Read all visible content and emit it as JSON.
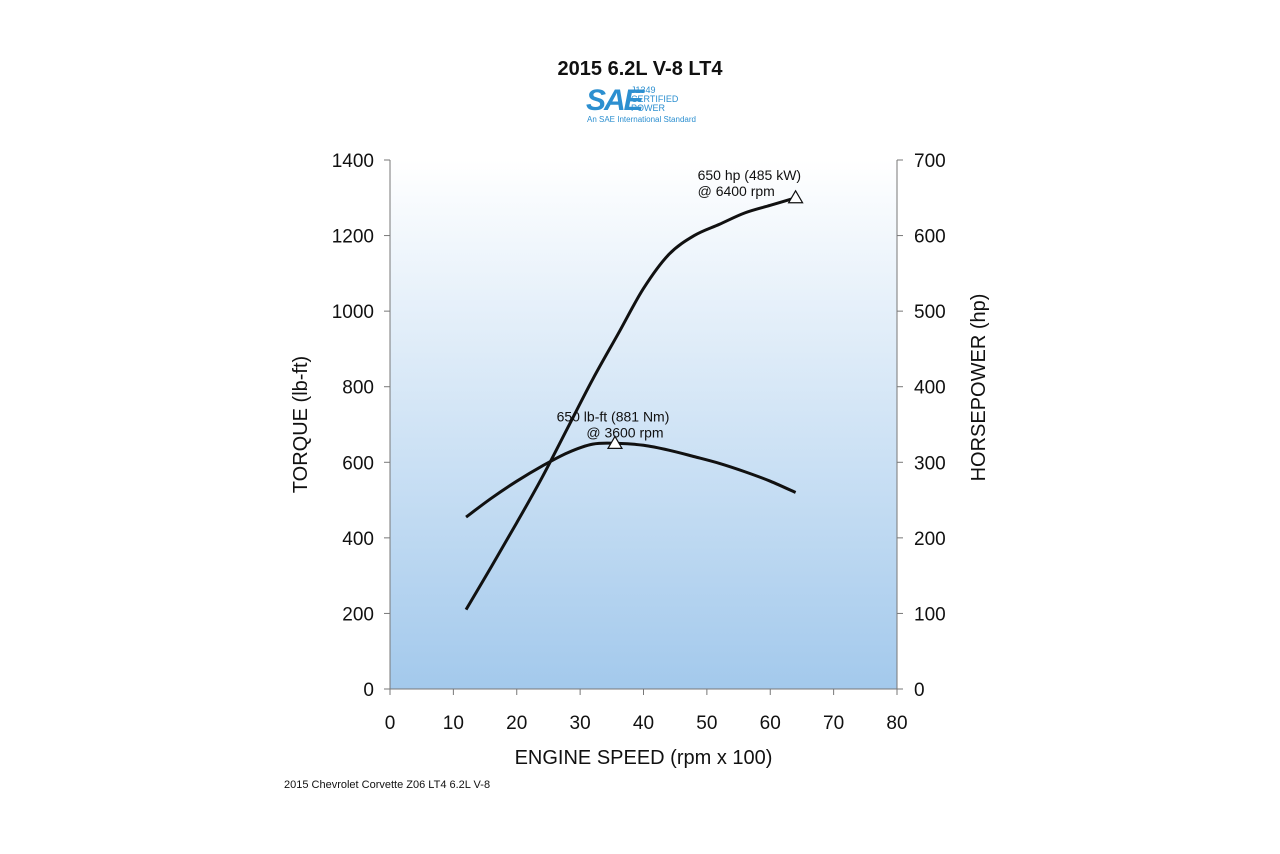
{
  "chart_data": {
    "type": "line",
    "title": "2015 6.2L V-8 LT4",
    "logo": {
      "main": "SAE",
      "line1": "J1349",
      "line2": "CERTIFIED",
      "line3": "POWER",
      "tagline": "An SAE International Standard"
    },
    "xlabel": "ENGINE SPEED (rpm x 100)",
    "ylabel_left": "TORQUE (lb-ft)",
    "ylabel_right": "HORSEPOWER (hp)",
    "xlim": [
      0,
      80
    ],
    "ylim_left": [
      0,
      1400
    ],
    "ylim_right": [
      0,
      700
    ],
    "x_ticks": [
      "0",
      "10",
      "20",
      "30",
      "40",
      "50",
      "60",
      "70",
      "80"
    ],
    "y_left_ticks": [
      "0",
      "200",
      "400",
      "600",
      "800",
      "1000",
      "1200",
      "1400"
    ],
    "y_right_ticks": [
      "0",
      "100",
      "200",
      "300",
      "400",
      "500",
      "600",
      "700"
    ],
    "series": [
      {
        "axis": "right",
        "x": [
          12,
          16,
          20,
          24,
          28,
          32,
          36,
          40,
          44,
          48,
          52,
          56,
          60,
          64
        ],
        "y": [
          105,
          162,
          220,
          280,
          345,
          410,
          470,
          530,
          575,
          600,
          615,
          630,
          640,
          650
        ]
      },
      {
        "axis": "left",
        "x": [
          12,
          16,
          20,
          24,
          28,
          32,
          36,
          40,
          44,
          48,
          52,
          56,
          60,
          64
        ],
        "y": [
          455,
          505,
          550,
          590,
          625,
          648,
          650,
          645,
          632,
          615,
          597,
          575,
          550,
          520
        ]
      }
    ],
    "annotations": [
      {
        "line1": "650 hp (485 kW)",
        "line2": "@ 6400 rpm",
        "x": 64,
        "y": 650,
        "axis": "right"
      },
      {
        "line1": "650 lb-ft (881 Nm)",
        "line2": "@ 3600 rpm",
        "x": 35.5,
        "y": 650,
        "axis": "left"
      }
    ],
    "grid": false,
    "background_gradient": [
      "#ffffff",
      "#a3c9ec"
    ]
  },
  "caption": "2015 Chevrolet Corvette Z06 LT4 6.2L V-8"
}
